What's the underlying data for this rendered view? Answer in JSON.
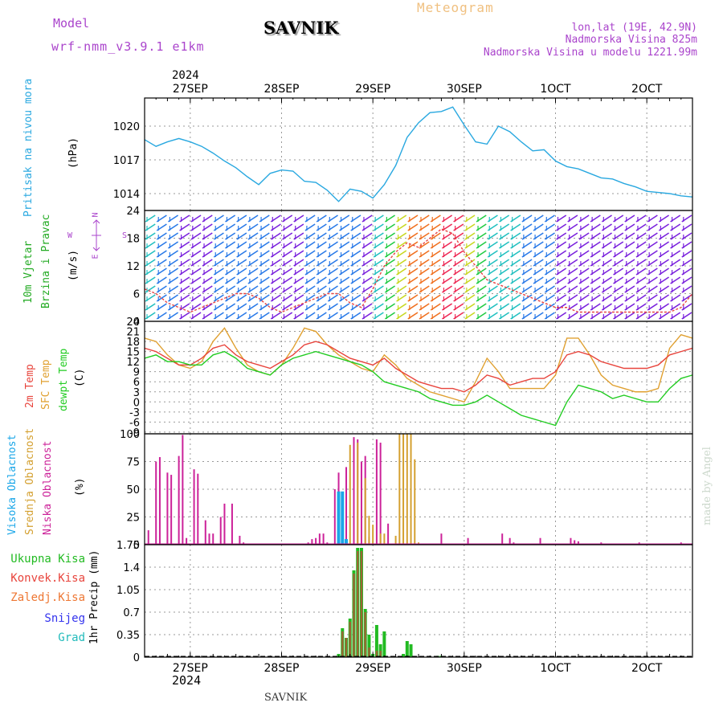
{
  "header": {
    "model_label": "Model",
    "model_name": "wrf-nmm_v3.9.1 e1km",
    "location": "SAVNIK",
    "subtitle": "Meteogram",
    "coords": "lon,lat (19E, 42.9N)",
    "elevation": "Nadmorska Visina 825m",
    "model_elevation": "Nadmorska Visina u modelu 1221.99m"
  },
  "footer": {
    "location": "SAVNIK",
    "credit": "made by Angel"
  },
  "colors": {
    "pressure": "#29a8e0",
    "temp2m": "#e8443c",
    "sfc": "#e0a030",
    "dewpt": "#22cc22",
    "cloud_high": "#1aa6e8",
    "cloud_mid": "#d4a030",
    "cloud_low": "#cc2299",
    "precip_total": "#22bb22",
    "precip_conv": "#e8443c",
    "snow": "#3333ee",
    "graupel": "#22bbbb",
    "wind_label": "#22aa22",
    "purple": "#aa44cc"
  },
  "chart_data": [
    {
      "type": "line",
      "panel": "pressure",
      "ylabel": [
        "Pritisak na nivou mora",
        "(hPa)"
      ],
      "year_top": "2024",
      "x_ticks": [
        "27SEP",
        "28SEP",
        "29SEP",
        "30SEP",
        "1OCT",
        "2OCT"
      ],
      "x_tick_labels": [
        "27SEP",
        "28SEP",
        "29SEP",
        "30SEP",
        "1OCT",
        "2OCT"
      ],
      "x_range_hours": [
        -12,
        132
      ],
      "ylim": [
        1012.5,
        1022.5
      ],
      "yticks": [
        1014,
        1017,
        1020
      ],
      "series": [
        {
          "x": [
            -12,
            -9,
            -6,
            -3,
            0,
            3,
            6,
            9,
            12,
            15,
            18,
            21,
            24,
            27,
            30,
            33,
            36,
            39,
            42,
            45,
            48,
            51,
            54,
            57,
            60,
            63,
            66,
            69,
            72,
            75,
            78,
            81,
            84,
            87,
            90,
            93,
            96,
            99,
            102,
            105,
            108,
            111,
            114,
            117,
            120,
            123,
            126,
            129,
            132
          ],
          "values": [
            1018.8,
            1018.2,
            1018.6,
            1018.9,
            1018.6,
            1018.2,
            1017.6,
            1016.9,
            1016.3,
            1015.5,
            1014.8,
            1015.8,
            1016.1,
            1016.0,
            1015.1,
            1015.0,
            1014.3,
            1013.3,
            1014.4,
            1014.2,
            1013.6,
            1014.8,
            1016.5,
            1019.0,
            1020.3,
            1021.2,
            1021.3,
            1021.7,
            1020.1,
            1018.6,
            1018.4,
            1020.0,
            1019.5,
            1018.6,
            1017.8,
            1017.9,
            1016.9,
            1016.4,
            1016.2,
            1015.8,
            1015.4,
            1015.3,
            1014.9,
            1014.6,
            1014.2,
            1014.1,
            1014.0,
            1013.8,
            1013.7
          ]
        }
      ]
    },
    {
      "type": "line",
      "panel": "wind",
      "ylabel": [
        "10m Vjetar",
        "Brzina i Pravac",
        "(m/s)"
      ],
      "compass": [
        "N",
        "W",
        "S",
        "E"
      ],
      "ylim": [
        0,
        24
      ],
      "yticks": [
        0,
        6,
        12,
        18,
        24
      ],
      "series": [
        {
          "name": "wind speed",
          "x": [
            -12,
            -9,
            -6,
            -3,
            0,
            3,
            6,
            9,
            12,
            15,
            18,
            21,
            24,
            27,
            30,
            33,
            36,
            39,
            42,
            45,
            48,
            51,
            54,
            57,
            60,
            63,
            66,
            69,
            72,
            75,
            78,
            81,
            84,
            87,
            90,
            93,
            96,
            99,
            102,
            105,
            108,
            111,
            114,
            117,
            120,
            123,
            126,
            129,
            132
          ],
          "values": [
            7,
            6,
            4,
            3,
            2,
            3,
            4,
            5,
            6,
            6,
            5,
            3,
            2,
            3,
            4,
            5,
            6,
            6,
            4,
            3,
            7,
            12,
            15,
            17,
            16,
            18,
            20,
            19,
            15,
            12,
            9,
            8,
            7,
            6,
            5,
            4,
            3,
            3,
            2,
            2,
            2,
            2,
            2,
            2,
            2,
            2,
            2,
            3,
            6
          ]
        }
      ]
    },
    {
      "type": "line",
      "panel": "temperature",
      "ylabel": [
        "2m Temp",
        "SFC Temp",
        "dewpt Temp",
        "(C)"
      ],
      "ylim": [
        -9.5,
        24
      ],
      "yticks": [
        -9,
        -6,
        -3,
        0,
        3,
        6,
        9,
        12,
        15,
        18,
        21,
        24
      ],
      "series": [
        {
          "name": "2m Temp",
          "x": [
            -12,
            -9,
            -6,
            -3,
            0,
            3,
            6,
            9,
            12,
            15,
            18,
            21,
            24,
            27,
            30,
            33,
            36,
            39,
            42,
            45,
            48,
            51,
            54,
            57,
            60,
            63,
            66,
            69,
            72,
            75,
            78,
            81,
            84,
            87,
            90,
            93,
            96,
            99,
            102,
            105,
            108,
            111,
            114,
            117,
            120,
            123,
            126,
            129,
            132
          ],
          "values": [
            16,
            15,
            13,
            11,
            11,
            13,
            16,
            17,
            14,
            12,
            11,
            10,
            12,
            14,
            17,
            18,
            17,
            15,
            13,
            12,
            11,
            13,
            10,
            8,
            6,
            5,
            4,
            4,
            3,
            5,
            8,
            7,
            5,
            6,
            7,
            7,
            9,
            14,
            15,
            14,
            12,
            11,
            10,
            10,
            10,
            11,
            14,
            15,
            16
          ]
        },
        {
          "name": "SFC Temp",
          "x": [
            -12,
            -9,
            -6,
            -3,
            0,
            3,
            6,
            9,
            12,
            15,
            18,
            21,
            24,
            27,
            30,
            33,
            36,
            39,
            42,
            45,
            48,
            51,
            54,
            57,
            60,
            63,
            66,
            69,
            72,
            75,
            78,
            81,
            84,
            87,
            90,
            93,
            96,
            99,
            102,
            105,
            108,
            111,
            114,
            117,
            120,
            123,
            126,
            129,
            132
          ],
          "values": [
            19,
            18,
            14,
            11,
            10,
            12,
            18,
            22,
            16,
            11,
            9,
            8,
            11,
            16,
            22,
            21,
            17,
            14,
            12,
            10,
            9,
            14,
            11,
            7,
            5,
            3,
            2,
            1,
            0,
            6,
            13,
            9,
            4,
            4,
            4,
            4,
            8,
            19,
            19,
            14,
            8,
            5,
            4,
            3,
            3,
            4,
            16,
            20,
            19
          ]
        },
        {
          "name": "dewpt Temp",
          "x": [
            -12,
            -9,
            -6,
            -3,
            0,
            3,
            6,
            9,
            12,
            15,
            18,
            21,
            24,
            27,
            30,
            33,
            36,
            39,
            42,
            45,
            48,
            51,
            54,
            57,
            60,
            63,
            66,
            69,
            72,
            75,
            78,
            81,
            84,
            87,
            90,
            93,
            96,
            99,
            102,
            105,
            108,
            111,
            114,
            117,
            120,
            123,
            126,
            129,
            132
          ],
          "values": [
            13,
            14,
            12,
            12,
            11,
            11,
            14,
            15,
            13,
            10,
            9,
            8,
            11,
            13,
            14,
            15,
            14,
            13,
            12,
            11,
            9,
            6,
            5,
            4,
            3,
            1,
            0,
            -1,
            -1,
            0,
            2,
            0,
            -2,
            -4,
            -5,
            -6,
            -7,
            0,
            5,
            4,
            3,
            1,
            2,
            1,
            0,
            0,
            4,
            7,
            8
          ]
        }
      ]
    },
    {
      "type": "bar",
      "panel": "clouds",
      "ylabel": [
        "Visoka Oblacnost",
        "Srednja Oblacnost",
        "Niska Oblacnost",
        "(%)"
      ],
      "ylim": [
        0,
        100
      ],
      "yticks": [
        0,
        25,
        50,
        75,
        100
      ],
      "series": [
        {
          "name": "Niska Oblacnost",
          "x": [
            -11,
            -9,
            -8,
            -6,
            -5,
            -3,
            -2,
            -1,
            1,
            2,
            4,
            5,
            6,
            8,
            9,
            11,
            13,
            14,
            16,
            30,
            31,
            32,
            33,
            34,
            35,
            36,
            38,
            39,
            41,
            43,
            44,
            45,
            46,
            47,
            49,
            50,
            52,
            66,
            73,
            82,
            84,
            85,
            92,
            100,
            101,
            102,
            108,
            118,
            129
          ],
          "values": [
            13,
            75,
            79,
            65,
            63,
            80,
            99,
            6,
            68,
            64,
            22,
            10,
            10,
            25,
            37,
            37,
            8,
            2,
            1,
            1,
            2,
            5,
            6,
            10,
            10,
            2,
            50,
            65,
            70,
            97,
            95,
            75,
            80,
            7,
            95,
            92,
            19,
            10,
            6,
            10,
            6,
            2,
            6,
            6,
            4,
            3,
            2,
            2,
            2
          ]
        },
        {
          "name": "Srednja Oblacnost",
          "x": [
            42,
            44,
            46,
            47,
            48,
            50,
            51,
            54,
            55,
            56,
            57,
            58,
            59,
            60
          ],
          "values": [
            90,
            92,
            60,
            26,
            18,
            10,
            10,
            8,
            100,
            100,
            100,
            100,
            77,
            2
          ]
        },
        {
          "name": "Visoka Oblacnost",
          "x": [
            39,
            40,
            41
          ],
          "values": [
            48,
            48,
            5
          ]
        }
      ]
    },
    {
      "type": "bar",
      "panel": "precipitation",
      "ylabel": [
        "1hr Precip (mm)"
      ],
      "legend": [
        "Ukupna Kisa",
        "Konvek.Kisa",
        "Zaledj.Kisa",
        "Snijeg",
        "Grad"
      ],
      "ylim": [
        0,
        1.75
      ],
      "yticks": [
        0,
        0.35,
        0.7,
        1.05,
        1.4,
        1.75
      ],
      "series": [
        {
          "name": "Ukupna Kisa",
          "x": [
            39,
            40,
            41,
            42,
            43,
            44,
            45,
            46,
            47,
            48,
            49,
            50,
            51,
            56,
            57,
            58,
            65,
            66
          ],
          "values": [
            0.05,
            0.45,
            0.3,
            0.6,
            1.35,
            1.7,
            1.7,
            0.75,
            0.35,
            0.05,
            0.5,
            0.2,
            0.4,
            0.05,
            0.25,
            0.2,
            0.02,
            0.02
          ]
        },
        {
          "name": "Konvek.Kisa",
          "x": [
            40,
            41,
            42,
            43,
            44,
            45,
            46,
            47,
            49,
            50
          ],
          "values": [
            0.4,
            0.3,
            0.55,
            1.3,
            1.65,
            1.65,
            0.7,
            0.15,
            0.1,
            0.1
          ]
        }
      ]
    }
  ]
}
